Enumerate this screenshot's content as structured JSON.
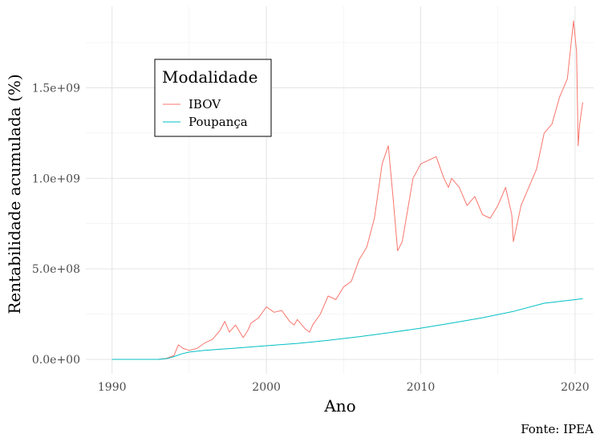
{
  "chart_data": {
    "type": "line",
    "xlabel": "Ano",
    "ylabel": "Rentabilidade acumulada (%)",
    "caption": "Fonte: IPEA",
    "xlim": [
      1988.3,
      2021.2
    ],
    "ylim": [
      -80000000,
      1950000000
    ],
    "x_ticks": [
      1990,
      2000,
      2010,
      2020
    ],
    "x_tick_labels": [
      "1990",
      "2000",
      "2010",
      "2020"
    ],
    "y_ticks": [
      0,
      500000000,
      1000000000,
      1500000000
    ],
    "y_tick_labels": [
      "0.0e+00",
      "5.0e+08",
      "1.0e+09",
      "1.5e+09"
    ],
    "grid": true,
    "legend": {
      "title": "Modalidade",
      "position": "top-left-inside",
      "entries": [
        {
          "label": "IBOV",
          "color": "#F8766D"
        },
        {
          "label": "Poupança",
          "color": "#00BFC4"
        }
      ]
    },
    "series": [
      {
        "name": "IBOV",
        "color": "#F8766D",
        "x": [
          1990,
          1991,
          1992,
          1993,
          1993.5,
          1994,
          1994.3,
          1994.6,
          1995,
          1995.5,
          1996,
          1996.5,
          1997,
          1997.3,
          1997.6,
          1998,
          1998.5,
          1998.8,
          1999,
          1999.5,
          2000,
          2000.5,
          2001,
          2001.5,
          2001.8,
          2002,
          2002.5,
          2002.8,
          2003,
          2003.5,
          2004,
          2004.5,
          2005,
          2005.5,
          2006,
          2006.5,
          2007,
          2007.5,
          2007.9,
          2008.2,
          2008.5,
          2008.8,
          2009,
          2009.5,
          2010,
          2010.5,
          2011,
          2011.5,
          2011.8,
          2012,
          2012.5,
          2013,
          2013.5,
          2014,
          2014.5,
          2015,
          2015.5,
          2015.9,
          2016,
          2016.5,
          2017,
          2017.5,
          2018,
          2018.5,
          2019,
          2019.5,
          2019.9,
          2020.1,
          2020.2,
          2020.3,
          2020.5
        ],
        "values": [
          0,
          0,
          0,
          0,
          5000000,
          20000000,
          80000000,
          60000000,
          50000000,
          60000000,
          90000000,
          110000000,
          160000000,
          210000000,
          150000000,
          190000000,
          120000000,
          160000000,
          200000000,
          230000000,
          290000000,
          260000000,
          270000000,
          210000000,
          190000000,
          220000000,
          170000000,
          150000000,
          190000000,
          250000000,
          350000000,
          330000000,
          400000000,
          430000000,
          550000000,
          620000000,
          780000000,
          1080000000,
          1180000000,
          900000000,
          600000000,
          650000000,
          750000000,
          1000000000,
          1080000000,
          1100000000,
          1120000000,
          1000000000,
          950000000,
          1000000000,
          950000000,
          850000000,
          900000000,
          800000000,
          780000000,
          850000000,
          950000000,
          800000000,
          650000000,
          850000000,
          950000000,
          1050000000,
          1250000000,
          1300000000,
          1450000000,
          1550000000,
          1870000000,
          1700000000,
          1180000000,
          1300000000,
          1420000000
        ]
      },
      {
        "name": "Poupança",
        "color": "#00BFC4",
        "x": [
          1990,
          1993,
          1993.6,
          1994,
          1994.5,
          1995,
          1996,
          1998,
          2000,
          2002,
          2004,
          2006,
          2008,
          2010,
          2012,
          2014,
          2016,
          2018,
          2020.5
        ],
        "values": [
          0,
          0,
          5000000,
          15000000,
          30000000,
          40000000,
          50000000,
          62000000,
          75000000,
          88000000,
          105000000,
          125000000,
          148000000,
          172000000,
          200000000,
          230000000,
          265000000,
          310000000,
          335000000
        ]
      }
    ]
  }
}
